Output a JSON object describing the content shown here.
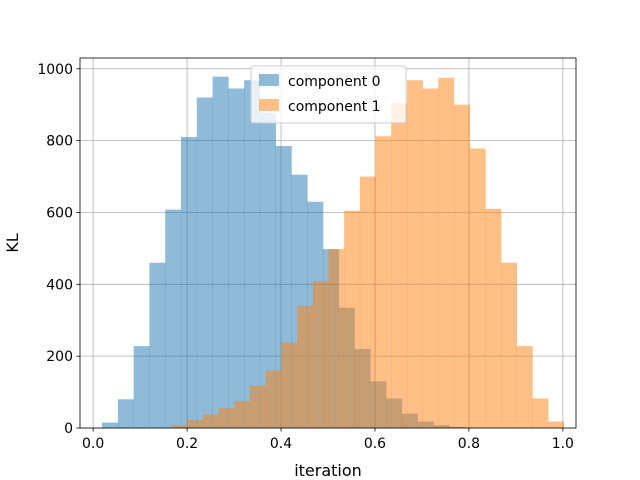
{
  "chart_data": {
    "type": "bar",
    "histogram": true,
    "xlabel": "iteration",
    "ylabel": "KL",
    "xlim": [
      -0.028,
      1.028
    ],
    "ylim": [
      0,
      1030
    ],
    "xticks": [
      "0.0",
      "0.2",
      "0.4",
      "0.6",
      "0.8",
      "1.0"
    ],
    "yticks": [
      "0",
      "200",
      "400",
      "600",
      "800",
      "1000"
    ],
    "grid": true,
    "legend": "top-center",
    "colors": {
      "component_0": "#1f77b4",
      "component_1": "#ff7f0e",
      "grid": "#b0b0b0",
      "axes": "#000000"
    },
    "bar_alpha": 0.5,
    "series": [
      {
        "name": "component 0",
        "bins": [
          [
            0.019,
            0.0526,
            15
          ],
          [
            0.0526,
            0.0862,
            80
          ],
          [
            0.0862,
            0.1198,
            228
          ],
          [
            0.1198,
            0.1534,
            460
          ],
          [
            0.1534,
            0.187,
            608
          ],
          [
            0.187,
            0.2206,
            810
          ],
          [
            0.2206,
            0.2542,
            920
          ],
          [
            0.2542,
            0.2878,
            978
          ],
          [
            0.2878,
            0.3214,
            945
          ],
          [
            0.3214,
            0.355,
            968
          ],
          [
            0.355,
            0.3886,
            878
          ],
          [
            0.3886,
            0.4222,
            785
          ],
          [
            0.4222,
            0.4558,
            705
          ],
          [
            0.4558,
            0.4894,
            630
          ],
          [
            0.4894,
            0.523,
            498
          ],
          [
            0.523,
            0.5566,
            335
          ],
          [
            0.5566,
            0.5902,
            220
          ],
          [
            0.5902,
            0.6238,
            130
          ],
          [
            0.6238,
            0.6574,
            82
          ],
          [
            0.6574,
            0.691,
            40
          ],
          [
            0.691,
            0.7246,
            18
          ],
          [
            0.7246,
            0.7582,
            8
          ],
          [
            0.7582,
            0.7918,
            3
          ]
        ]
      },
      {
        "name": "component 1",
        "bins": [
          [
            0.167,
            0.2004,
            8
          ],
          [
            0.2004,
            0.2338,
            22
          ],
          [
            0.2338,
            0.2672,
            38
          ],
          [
            0.2672,
            0.3006,
            55
          ],
          [
            0.3006,
            0.334,
            75
          ],
          [
            0.334,
            0.3674,
            118
          ],
          [
            0.3674,
            0.4008,
            160
          ],
          [
            0.4008,
            0.4342,
            238
          ],
          [
            0.4342,
            0.4676,
            340
          ],
          [
            0.4676,
            0.501,
            408
          ],
          [
            0.501,
            0.5344,
            498
          ],
          [
            0.5344,
            0.5678,
            605
          ],
          [
            0.5678,
            0.6012,
            700
          ],
          [
            0.6012,
            0.6346,
            812
          ],
          [
            0.6346,
            0.668,
            905
          ],
          [
            0.668,
            0.7014,
            968
          ],
          [
            0.7014,
            0.7348,
            945
          ],
          [
            0.7348,
            0.7682,
            975
          ],
          [
            0.7682,
            0.8016,
            900
          ],
          [
            0.8016,
            0.835,
            778
          ],
          [
            0.835,
            0.8684,
            610
          ],
          [
            0.8684,
            0.9018,
            460
          ],
          [
            0.9018,
            0.9352,
            228
          ],
          [
            0.9352,
            0.9686,
            82
          ],
          [
            0.9686,
            1.002,
            18
          ]
        ]
      }
    ]
  }
}
